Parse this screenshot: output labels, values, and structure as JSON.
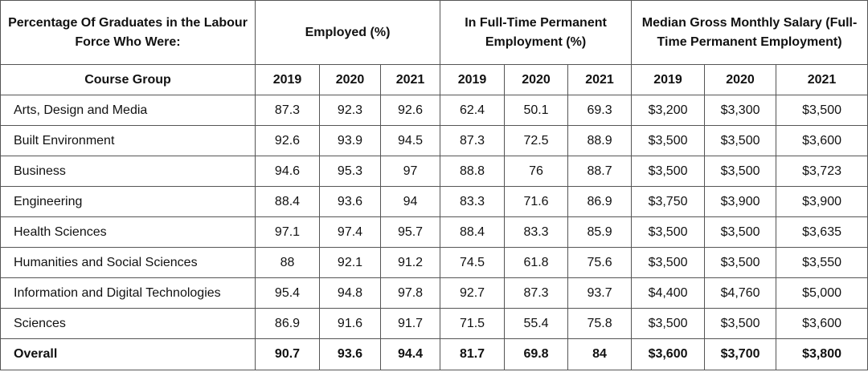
{
  "table": {
    "header": {
      "corner": "Percentage Of Graduates in the Labour Force Who Were:",
      "group_employed": "Employed (%)",
      "group_fulltime": "In Full-Time Permanent Employment (%)",
      "group_salary": "Median Gross Monthly Salary (Full-Time Permanent Employment)",
      "course_group_label": "Course Group",
      "years": [
        "2019",
        "2020",
        "2021",
        "2019",
        "2020",
        "2021",
        "2019",
        "2020",
        "2021"
      ]
    },
    "rows": [
      {
        "course": "Arts, Design and Media",
        "values": [
          "87.3",
          "92.3",
          "92.6",
          "62.4",
          "50.1",
          "69.3",
          "$3,200",
          "$3,300",
          "$3,500"
        ]
      },
      {
        "course": "Built Environment",
        "values": [
          "92.6",
          "93.9",
          "94.5",
          "87.3",
          "72.5",
          "88.9",
          "$3,500",
          "$3,500",
          "$3,600"
        ]
      },
      {
        "course": "Business",
        "values": [
          "94.6",
          "95.3",
          "97",
          "88.8",
          "76",
          "88.7",
          "$3,500",
          "$3,500",
          "$3,723"
        ]
      },
      {
        "course": "Engineering",
        "values": [
          "88.4",
          "93.6",
          "94",
          "83.3",
          "71.6",
          "86.9",
          "$3,750",
          "$3,900",
          "$3,900"
        ]
      },
      {
        "course": "Health Sciences",
        "values": [
          "97.1",
          "97.4",
          "95.7",
          "88.4",
          "83.3",
          "85.9",
          "$3,500",
          "$3,500",
          "$3,635"
        ]
      },
      {
        "course": "Humanities and Social Sciences",
        "values": [
          "88",
          "92.1",
          "91.2",
          "74.5",
          "61.8",
          "75.6",
          "$3,500",
          "$3,500",
          "$3,550"
        ]
      },
      {
        "course": "Information and Digital Technologies",
        "values": [
          "95.4",
          "94.8",
          "97.8",
          "92.7",
          "87.3",
          "93.7",
          "$4,400",
          "$4,760",
          "$5,000"
        ]
      },
      {
        "course": "Sciences",
        "values": [
          "86.9",
          "91.6",
          "91.7",
          "71.5",
          "55.4",
          "75.8",
          "$3,500",
          "$3,500",
          "$3,600"
        ]
      }
    ],
    "overall": {
      "course": "Overall",
      "values": [
        "90.7",
        "93.6",
        "94.4",
        "81.7",
        "69.8",
        "84",
        "$3,600",
        "$3,700",
        "$3,800"
      ]
    }
  }
}
